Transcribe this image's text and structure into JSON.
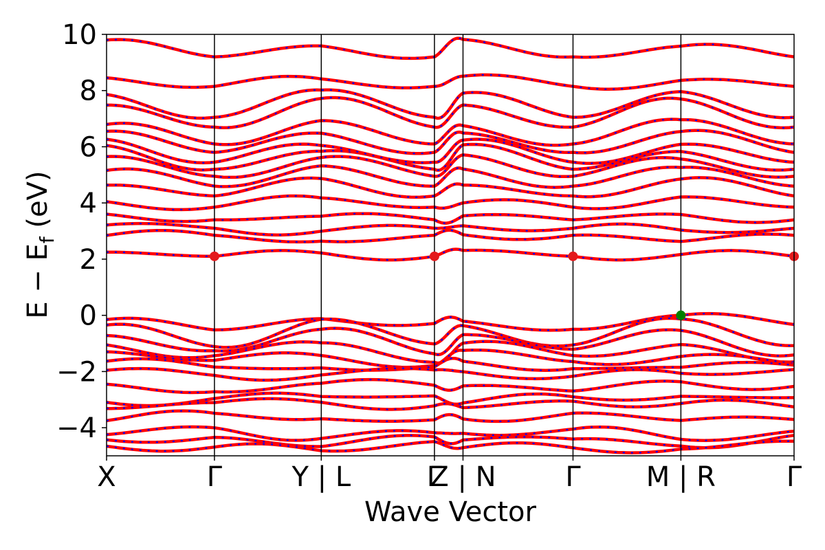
{
  "chart_data": {
    "type": "line",
    "title": "",
    "xlabel": "Wave Vector",
    "ylabel": "E − E",
    "ylabel_sub": "f",
    "ylabel_unit": " (eV)",
    "ylim": [
      -5,
      10
    ],
    "yticks": [
      {
        "value": 10,
        "label": "10"
      },
      {
        "value": 8,
        "label": "8"
      },
      {
        "value": 6,
        "label": "6"
      },
      {
        "value": 4,
        "label": "4"
      },
      {
        "value": 2,
        "label": "2"
      },
      {
        "value": 0,
        "label": "0"
      },
      {
        "value": -2,
        "label": "−2"
      },
      {
        "value": -4,
        "label": "−4"
      }
    ],
    "xlim": [
      0,
      6.5
    ],
    "kpath": [
      {
        "x": 0.0,
        "label": "X"
      },
      {
        "x": 1.02,
        "label": "Γ"
      },
      {
        "x": 2.03,
        "label": "Y | L"
      },
      {
        "x": 3.1,
        "label": "Γ"
      },
      {
        "x": 3.37,
        "label": "Z | N"
      },
      {
        "x": 4.41,
        "label": "Γ"
      },
      {
        "x": 5.43,
        "label": "M | R"
      },
      {
        "x": 6.5,
        "label": "Γ"
      }
    ],
    "vertical_lines": [
      1.02,
      2.03,
      3.1,
      3.37,
      4.41,
      5.43
    ],
    "grid": false,
    "series_colors": {
      "spin_a": "#ff0000",
      "spin_b": "#0000ff"
    },
    "cbm_points": [
      {
        "x": 1.02,
        "y": 2.1
      },
      {
        "x": 3.1,
        "y": 2.1
      },
      {
        "x": 4.41,
        "y": 2.1
      },
      {
        "x": 6.5,
        "y": 2.1
      }
    ],
    "cbm_color": "#e31a1c",
    "vbm_points": [
      {
        "x": 5.43,
        "y": 0.0
      }
    ],
    "vbm_color": "#008000",
    "conduction_band_minima_at_gamma": [
      2.1,
      2.85,
      3.1,
      3.4,
      3.85,
      4.25,
      4.6,
      4.95,
      5.2,
      5.45,
      5.8,
      6.1,
      6.7,
      7.05,
      8.15,
      9.2
    ],
    "conduction_band_edges_at_X": [
      2.25,
      2.75,
      3.1,
      3.55,
      4.1,
      4.75,
      5.25,
      5.65,
      5.95,
      6.15,
      6.5,
      6.85,
      7.6,
      7.95,
      8.45,
      9.7
    ],
    "valence_band_maxima_at_gamma": [
      -0.4,
      -1.05,
      -1.3,
      -1.55,
      -1.7,
      -1.85,
      -2.05,
      -2.6,
      -2.9,
      -3.15,
      -3.6,
      -4.1,
      -4.35,
      -4.6
    ],
    "valence_band_edges_at_X": [
      -0.15,
      -0.25,
      -0.6,
      -1.0,
      -1.35,
      -1.75,
      -2.05,
      -2.45,
      -3.0,
      -3.2,
      -3.7,
      -4.3,
      -4.55,
      -4.75
    ]
  }
}
